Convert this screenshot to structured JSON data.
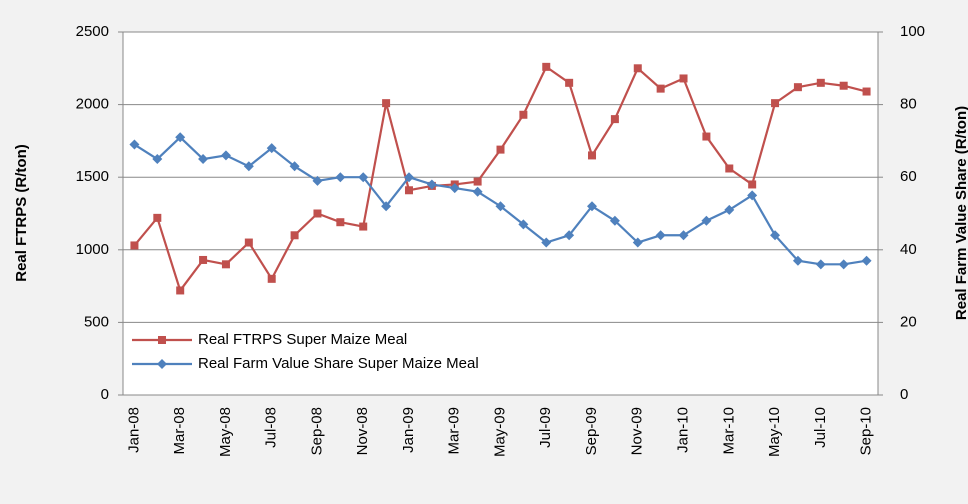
{
  "chart_data": {
    "type": "line",
    "ylabel": "Real FTRPS (R/ton)",
    "y2label": "Real Farm Value Share (R/ton)",
    "categories": [
      "Jan-08",
      null,
      "Mar-08",
      null,
      "May-08",
      null,
      "Jul-08",
      null,
      "Sep-08",
      null,
      "Nov-08",
      null,
      "Jan-09",
      null,
      "Mar-09",
      null,
      "May-09",
      null,
      "Jul-09",
      null,
      "Sep-09",
      null,
      "Nov-09",
      null,
      "Jan-10",
      null,
      "Mar-10",
      null,
      "May-10",
      null,
      "Jul-10",
      null,
      "Sep-10"
    ],
    "series": [
      {
        "name": "Real FTRPS Super Maize Meal",
        "color": "#c0504d",
        "marker": "square",
        "axis": "y",
        "values": [
          1030,
          1220,
          720,
          930,
          900,
          1050,
          800,
          1100,
          1250,
          1190,
          1160,
          2010,
          1410,
          1440,
          1450,
          1470,
          1690,
          1930,
          2260,
          2150,
          1650,
          1900,
          2250,
          2110,
          2180,
          1780,
          1560,
          1450,
          2010,
          2120,
          2150,
          2130,
          2090
        ]
      },
      {
        "name": "Real Farm Value Share Super Maize Meal",
        "color": "#4f81bd",
        "marker": "diamond",
        "axis": "y2",
        "values": [
          69,
          65,
          71,
          65,
          66,
          63,
          68,
          63,
          59,
          60,
          60,
          52,
          60,
          58,
          57,
          56,
          52,
          47,
          42,
          44,
          52,
          48,
          42,
          44,
          44,
          48,
          51,
          55,
          44,
          37,
          36,
          36,
          37
        ]
      }
    ],
    "ylim": [
      0,
      2500
    ],
    "yticks": [
      0,
      500,
      1000,
      1500,
      2000,
      2500
    ],
    "y2lim": [
      0,
      100
    ],
    "y2ticks": [
      0,
      20,
      40,
      60,
      80,
      100
    ],
    "grid": true,
    "legend": "lower left"
  }
}
